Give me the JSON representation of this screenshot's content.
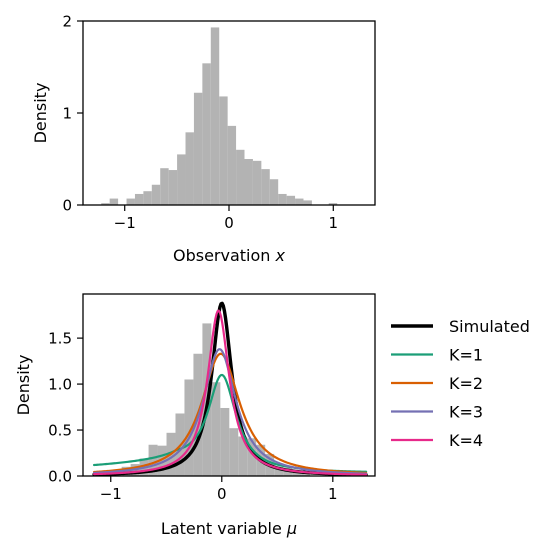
{
  "chart_data": [
    {
      "type": "bar",
      "xlabel_text": "Observation ",
      "xlabel_var": "x",
      "ylabel": "Density",
      "xlim": [
        -1.4,
        1.4
      ],
      "ylim": [
        0,
        2
      ],
      "xticks": [
        -1,
        0,
        1
      ],
      "xtick_labels": [
        "−1",
        "0",
        "1"
      ],
      "yticks": [
        0,
        1,
        2
      ],
      "ytick_labels": [
        "0",
        "1",
        "2"
      ],
      "bin_width": 0.0808,
      "bin_left": -1.225,
      "values": [
        0.02,
        0.07,
        0.0,
        0.07,
        0.12,
        0.15,
        0.22,
        0.4,
        0.38,
        0.55,
        0.79,
        1.22,
        1.54,
        1.93,
        1.18,
        0.86,
        0.6,
        0.5,
        0.48,
        0.39,
        0.28,
        0.12,
        0.1,
        0.07,
        0.05,
        0.0,
        0.0,
        0.02,
        0.0,
        0.0
      ],
      "bar_color": "#b3b3b3"
    },
    {
      "type": "line",
      "xlabel_text": "Latent variable ",
      "xlabel_var": "μ",
      "ylabel": "Density",
      "xlim": [
        -1.25,
        1.38
      ],
      "ylim": [
        0,
        1.98
      ],
      "xticks": [
        -1,
        0,
        1
      ],
      "xtick_labels": [
        "−1",
        "0",
        "1"
      ],
      "yticks": [
        0,
        0.5,
        1.0,
        1.5
      ],
      "ytick_labels": [
        "0.0",
        "0.5",
        "1.0",
        "1.5"
      ],
      "histogram": {
        "bin_width": 0.0808,
        "bin_left": -1.225,
        "values": [
          0.0,
          0.05,
          0.0,
          0.05,
          0.1,
          0.13,
          0.19,
          0.34,
          0.33,
          0.47,
          0.68,
          1.05,
          1.33,
          1.66,
          1.02,
          0.74,
          0.52,
          0.43,
          0.41,
          0.34,
          0.24,
          0.1,
          0.09,
          0.06,
          0.04,
          0.0,
          0.0,
          0.0,
          0.0,
          0.0
        ],
        "color": "#b3b3b3"
      },
      "curve_range": [
        -1.15,
        1.3
      ],
      "series": [
        {
          "name": "Simulated",
          "color": "#000000",
          "width": 3.4,
          "peak": 1.88,
          "center": 0.0,
          "scale": 0.11,
          "shape": "cauchy"
        },
        {
          "name": "K=1",
          "color": "#1b9e77",
          "width": 2.2,
          "peak": 1.1,
          "center": 0.0,
          "scale": 0.16,
          "shape": "heavy-left",
          "tail_left": 0.2,
          "tail_right": 0.03
        },
        {
          "name": "K=2",
          "color": "#d95f02",
          "width": 2.2,
          "peak": 1.33,
          "center": -0.01,
          "scale": 0.21,
          "shape": "cauchy"
        },
        {
          "name": "K=3",
          "color": "#7570b3",
          "width": 2.2,
          "peak": 1.38,
          "center": -0.02,
          "scale": 0.18,
          "shape": "cauchy"
        },
        {
          "name": "K=4",
          "color": "#e7298a",
          "width": 2.2,
          "peak": 1.8,
          "center": -0.03,
          "scale": 0.12,
          "shape": "cauchy"
        }
      ],
      "legend_placement": "right-outside"
    }
  ]
}
